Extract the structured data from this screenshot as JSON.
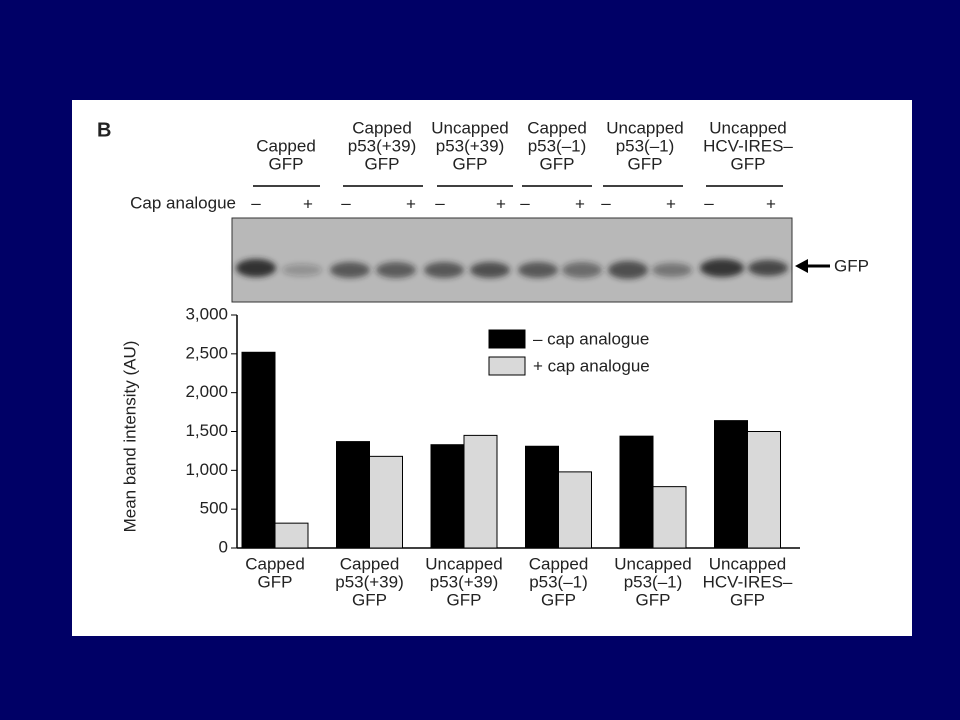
{
  "panel_label": "B",
  "gel": {
    "cap_analogue_label": "Cap analogue",
    "signs": [
      "–",
      "+"
    ],
    "band_label": "GFP",
    "headers": [
      [
        "Capped",
        "GFP"
      ],
      [
        "Capped",
        "p53(+39)",
        "GFP"
      ],
      [
        "Uncapped",
        "p53(+39)",
        "GFP"
      ],
      [
        "Capped",
        "p53(–1)",
        "GFP"
      ],
      [
        "Uncapped",
        "p53(–1)",
        "GFP"
      ],
      [
        "Uncapped",
        "HCV-IRES–",
        "GFP"
      ]
    ]
  },
  "chart_data": {
    "type": "bar",
    "y_label": "Mean band intensity (AU)",
    "categories": [
      [
        "Capped",
        "GFP"
      ],
      [
        "Capped",
        "p53(+39)",
        "GFP"
      ],
      [
        "Uncapped",
        "p53(+39)",
        "GFP"
      ],
      [
        "Capped",
        "p53(–1)",
        "GFP"
      ],
      [
        "Uncapped",
        "p53(–1)",
        "GFP"
      ],
      [
        "Uncapped",
        "HCV-IRES–",
        "GFP"
      ]
    ],
    "series": [
      {
        "name": "– cap analogue",
        "color": "#000000",
        "values": [
          2520,
          1370,
          1330,
          1310,
          1440,
          1640
        ]
      },
      {
        "name": "+ cap analogue",
        "color": "#d9d9d9",
        "values": [
          320,
          1180,
          1450,
          980,
          790,
          1500
        ]
      }
    ],
    "ylim": [
      0,
      3000
    ],
    "yticks": [
      0,
      500,
      {
        "value": 1000,
        "label": "1,000"
      },
      {
        "value": 1500,
        "label": "1,500"
      },
      {
        "value": 2000,
        "label": "2,000"
      },
      {
        "value": 2500,
        "label": "2,500"
      },
      {
        "value": 3000,
        "label": "3,000"
      }
    ],
    "legend": "top-right"
  }
}
